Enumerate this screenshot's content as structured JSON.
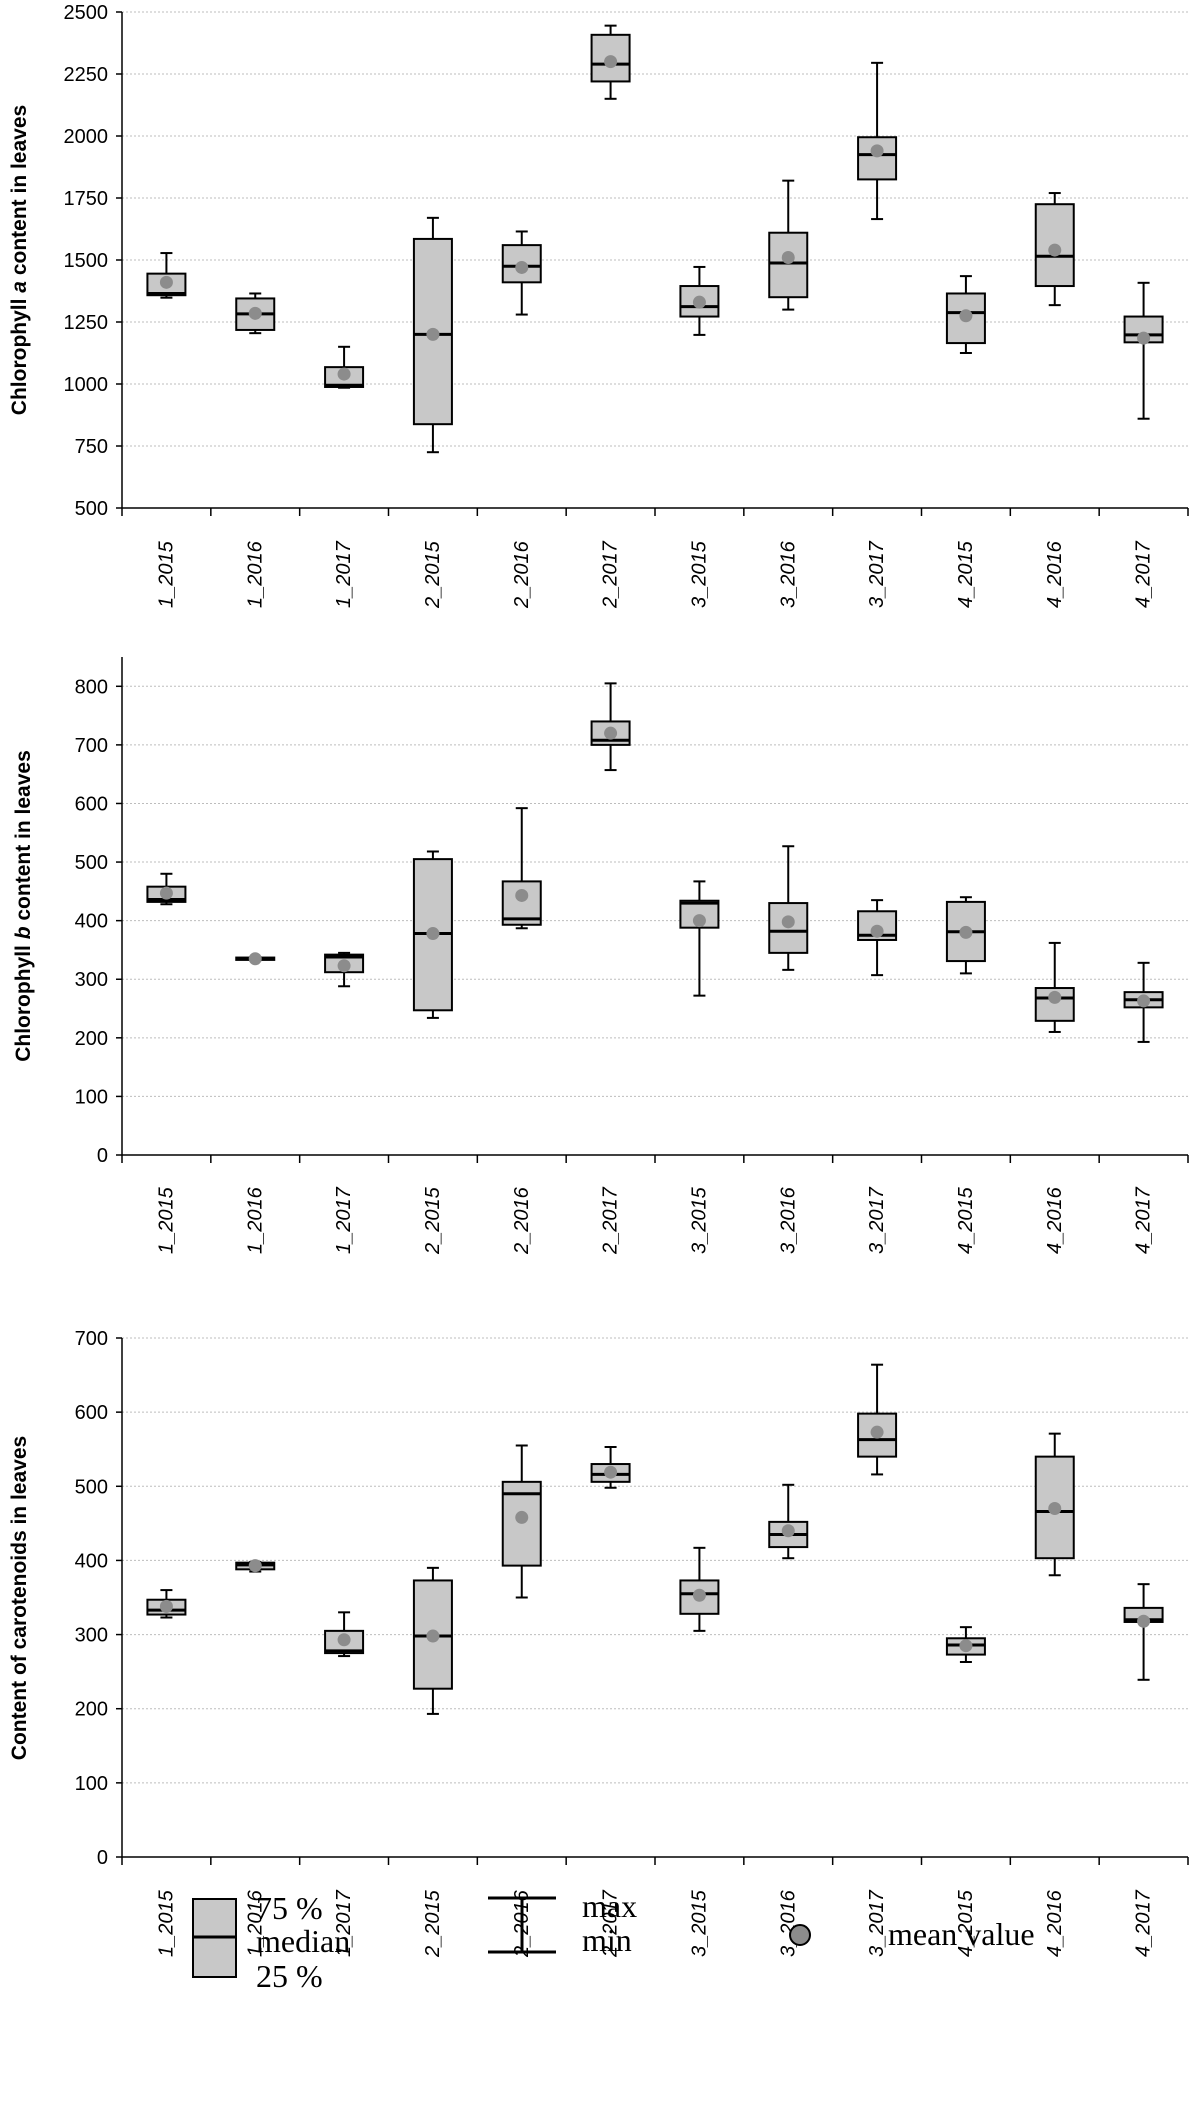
{
  "chart_data": [
    {
      "type": "box",
      "ylabel_parts": [
        "Chlorophyll ",
        "a",
        " content in leaves"
      ],
      "ylim": [
        500,
        2500
      ],
      "yticks": [
        500,
        750,
        1000,
        1250,
        1500,
        1750,
        2000,
        2250,
        2500
      ],
      "grid": true,
      "categories": [
        "1_2015",
        "1_2016",
        "1_2017",
        "2_2015",
        "2_2016",
        "2_2017",
        "3_2015",
        "3_2016",
        "3_2017",
        "4_2015",
        "4_2016",
        "4_2017"
      ],
      "boxes": [
        {
          "min": 1348,
          "q1": 1358,
          "median": 1365,
          "q3": 1445,
          "max": 1528,
          "mean": 1410
        },
        {
          "min": 1205,
          "q1": 1218,
          "median": 1283,
          "q3": 1345,
          "max": 1365,
          "mean": 1285
        },
        {
          "min": 985,
          "q1": 988,
          "median": 995,
          "q3": 1068,
          "max": 1150,
          "mean": 1040
        },
        {
          "min": 725,
          "q1": 838,
          "median": 1200,
          "q3": 1585,
          "max": 1670,
          "mean": 1200
        },
        {
          "min": 1280,
          "q1": 1410,
          "median": 1475,
          "q3": 1560,
          "max": 1615,
          "mean": 1470
        },
        {
          "min": 2150,
          "q1": 2220,
          "median": 2290,
          "q3": 2408,
          "max": 2445,
          "mean": 2300
        },
        {
          "min": 1198,
          "q1": 1272,
          "median": 1312,
          "q3": 1395,
          "max": 1472,
          "mean": 1330
        },
        {
          "min": 1300,
          "q1": 1350,
          "median": 1488,
          "q3": 1610,
          "max": 1820,
          "mean": 1510
        },
        {
          "min": 1665,
          "q1": 1825,
          "median": 1925,
          "q3": 1995,
          "max": 2295,
          "mean": 1940
        },
        {
          "min": 1125,
          "q1": 1165,
          "median": 1288,
          "q3": 1365,
          "max": 1435,
          "mean": 1275
        },
        {
          "min": 1318,
          "q1": 1395,
          "median": 1515,
          "q3": 1725,
          "max": 1770,
          "mean": 1540
        },
        {
          "min": 860,
          "q1": 1168,
          "median": 1198,
          "q3": 1272,
          "max": 1408,
          "mean": 1185
        }
      ]
    },
    {
      "type": "box",
      "ylabel_parts": [
        "Chlorophyll ",
        "b",
        " content in leaves"
      ],
      "ylim": [
        0,
        850
      ],
      "yticks": [
        0,
        100,
        200,
        300,
        400,
        500,
        600,
        700,
        800
      ],
      "grid": true,
      "categories": [
        "1_2015",
        "1_2016",
        "1_2017",
        "2_2015",
        "2_2016",
        "2_2017",
        "3_2015",
        "3_2016",
        "3_2017",
        "4_2015",
        "4_2016",
        "4_2017"
      ],
      "boxes": [
        {
          "min": 428,
          "q1": 432,
          "median": 436,
          "q3": 458,
          "max": 480,
          "mean": 447
        },
        {
          "min": 332,
          "q1": 333,
          "median": 335,
          "q3": 337,
          "max": 338,
          "mean": 335
        },
        {
          "min": 288,
          "q1": 312,
          "median": 338,
          "q3": 342,
          "max": 345,
          "mean": 323
        },
        {
          "min": 234,
          "q1": 247,
          "median": 378,
          "q3": 505,
          "max": 518,
          "mean": 378
        },
        {
          "min": 387,
          "q1": 393,
          "median": 403,
          "q3": 467,
          "max": 592,
          "mean": 443
        },
        {
          "min": 657,
          "q1": 700,
          "median": 708,
          "q3": 740,
          "max": 805,
          "mean": 720
        },
        {
          "min": 272,
          "q1": 388,
          "median": 430,
          "q3": 434,
          "max": 467,
          "mean": 400
        },
        {
          "min": 316,
          "q1": 345,
          "median": 382,
          "q3": 430,
          "max": 527,
          "mean": 398
        },
        {
          "min": 307,
          "q1": 367,
          "median": 375,
          "q3": 416,
          "max": 435,
          "mean": 382
        },
        {
          "min": 310,
          "q1": 331,
          "median": 381,
          "q3": 432,
          "max": 440,
          "mean": 380
        },
        {
          "min": 210,
          "q1": 229,
          "median": 268,
          "q3": 285,
          "max": 362,
          "mean": 269
        },
        {
          "min": 193,
          "q1": 252,
          "median": 265,
          "q3": 278,
          "max": 328,
          "mean": 263
        }
      ]
    },
    {
      "type": "box",
      "ylabel_parts": [
        "Content of carotenoids in leaves"
      ],
      "ylim": [
        0,
        700
      ],
      "yticks": [
        0,
        100,
        200,
        300,
        400,
        500,
        600,
        700
      ],
      "grid": true,
      "categories": [
        "1_2015",
        "1_2016",
        "1_2017",
        "2_2015",
        "2_2016",
        "2_2017",
        "3_2015",
        "3_2016",
        "3_2017",
        "4_2015",
        "4_2016",
        "4_2017"
      ],
      "boxes": [
        {
          "min": 323,
          "q1": 327,
          "median": 333,
          "q3": 347,
          "max": 360,
          "mean": 338
        },
        {
          "min": 385,
          "q1": 388,
          "median": 394,
          "q3": 397,
          "max": 398,
          "mean": 393
        },
        {
          "min": 271,
          "q1": 275,
          "median": 278,
          "q3": 305,
          "max": 330,
          "mean": 293
        },
        {
          "min": 193,
          "q1": 227,
          "median": 298,
          "q3": 373,
          "max": 390,
          "mean": 298
        },
        {
          "min": 350,
          "q1": 393,
          "median": 490,
          "q3": 506,
          "max": 555,
          "mean": 458
        },
        {
          "min": 498,
          "q1": 506,
          "median": 516,
          "q3": 530,
          "max": 553,
          "mean": 519
        },
        {
          "min": 305,
          "q1": 328,
          "median": 355,
          "q3": 373,
          "max": 417,
          "mean": 353
        },
        {
          "min": 403,
          "q1": 418,
          "median": 435,
          "q3": 452,
          "max": 502,
          "mean": 440
        },
        {
          "min": 516,
          "q1": 540,
          "median": 563,
          "q3": 598,
          "max": 664,
          "mean": 573
        },
        {
          "min": 263,
          "q1": 273,
          "median": 286,
          "q3": 295,
          "max": 310,
          "mean": 285
        },
        {
          "min": 380,
          "q1": 403,
          "median": 466,
          "q3": 540,
          "max": 571,
          "mean": 470
        },
        {
          "min": 239,
          "q1": 317,
          "median": 320,
          "q3": 336,
          "max": 368,
          "mean": 318
        }
      ]
    }
  ],
  "legend": {
    "box_labels": [
      "75 %",
      "median",
      "25 %"
    ],
    "whisker_labels": [
      "max",
      "min"
    ],
    "mean_label": "mean value"
  },
  "colors": {
    "box_fill": "#c8c8c8",
    "mean_marker": "#8c8c8c",
    "grid": "#bdbdbd",
    "axis": "#000000"
  }
}
